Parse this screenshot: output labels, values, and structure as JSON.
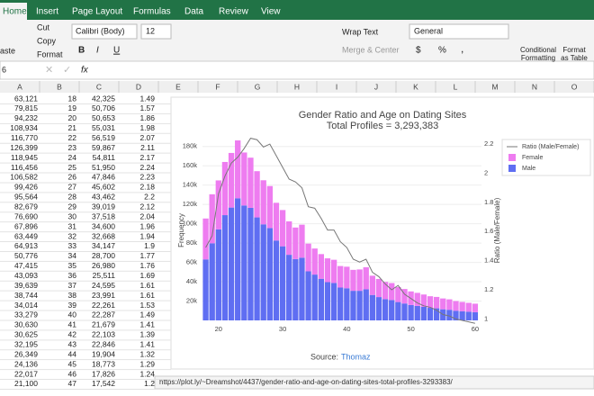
{
  "ribbon": {
    "tabs": [
      "Home",
      "Insert",
      "Page Layout",
      "Formulas",
      "Data",
      "Review",
      "View"
    ],
    "clipboard": {
      "paste": "aste",
      "cut": "Cut",
      "copy": "Copy",
      "format": "Format"
    },
    "font": {
      "name": "Calibri (Body)",
      "size": "12",
      "bold": "B",
      "italic": "I",
      "underline": "U"
    },
    "alignment": {
      "wrap": "Wrap Text",
      "merge": "Merge & Center"
    },
    "number": {
      "format": "General",
      "currency": "$",
      "percent": "%",
      "comma": ","
    },
    "styles": {
      "conditional": [
        "Conditional",
        "Formatting"
      ],
      "table": [
        "Format",
        "as Table"
      ]
    }
  },
  "formula_bar": {
    "name_box": "6",
    "fx": "fx"
  },
  "sheet": {
    "columns": [
      "A",
      "B",
      "C",
      "D",
      "E",
      "F",
      "G",
      "H",
      "I",
      "J",
      "K",
      "L",
      "M",
      "N",
      "O"
    ],
    "rows": [
      [
        "63,121",
        "18",
        "42,325",
        "1.49"
      ],
      [
        "79,815",
        "19",
        "50,706",
        "1.57"
      ],
      [
        "94,232",
        "20",
        "50,653",
        "1.86"
      ],
      [
        "108,934",
        "21",
        "55,031",
        "1.98"
      ],
      [
        "116,770",
        "22",
        "56,519",
        "2.07"
      ],
      [
        "126,399",
        "23",
        "59,867",
        "2.11"
      ],
      [
        "118,945",
        "24",
        "54,811",
        "2.17"
      ],
      [
        "116,456",
        "25",
        "51,950",
        "2.24"
      ],
      [
        "106,582",
        "26",
        "47,846",
        "2.23"
      ],
      [
        "99,426",
        "27",
        "45,602",
        "2.18"
      ],
      [
        "95,564",
        "28",
        "43,462",
        "2.2"
      ],
      [
        "82,679",
        "29",
        "39,019",
        "2.12"
      ],
      [
        "76,690",
        "30",
        "37,518",
        "2.04"
      ],
      [
        "67,896",
        "31",
        "34,600",
        "1.96"
      ],
      [
        "63,449",
        "32",
        "32,668",
        "1.94"
      ],
      [
        "64,913",
        "33",
        "34,147",
        "1.9"
      ],
      [
        "50,776",
        "34",
        "28,700",
        "1.77"
      ],
      [
        "47,415",
        "35",
        "26,980",
        "1.76"
      ],
      [
        "43,093",
        "36",
        "25,511",
        "1.69"
      ],
      [
        "39,639",
        "37",
        "24,595",
        "1.61"
      ],
      [
        "38,744",
        "38",
        "23,991",
        "1.61"
      ],
      [
        "34,014",
        "39",
        "22,261",
        "1.53"
      ],
      [
        "33,279",
        "40",
        "22,287",
        "1.49"
      ],
      [
        "30,630",
        "41",
        "21,679",
        "1.41"
      ],
      [
        "30,625",
        "42",
        "22,103",
        "1.39"
      ],
      [
        "32,195",
        "43",
        "22,846",
        "1.41"
      ],
      [
        "26,349",
        "44",
        "19,904",
        "1.32"
      ],
      [
        "24,136",
        "45",
        "18,773",
        "1.29"
      ],
      [
        "22,017",
        "46",
        "17,826",
        "1.24"
      ],
      [
        "21,100",
        "47",
        "17,542",
        "1.2"
      ]
    ]
  },
  "chart_data": {
    "type": "bar",
    "stacked": true,
    "title": "Gender Ratio and Age on Dating Sites",
    "subtitle": "Total Profiles = 3,293,383",
    "ylabel": "Frequency",
    "y2label": "Ratio (Male/Female)",
    "source_label": "Source:",
    "source": "Thomaz",
    "x": [
      18,
      19,
      20,
      21,
      22,
      23,
      24,
      25,
      26,
      27,
      28,
      29,
      30,
      31,
      32,
      33,
      34,
      35,
      36,
      37,
      38,
      39,
      40,
      41,
      42,
      43,
      44,
      45,
      46,
      47,
      48,
      49,
      50,
      51,
      52,
      53,
      54,
      55,
      56,
      57,
      58,
      59,
      60
    ],
    "series": [
      {
        "name": "Male",
        "color": "#5f6ef2",
        "values": [
          63121,
          79815,
          94232,
          108934,
          116770,
          126399,
          118945,
          116456,
          106582,
          99426,
          95564,
          82679,
          76690,
          67896,
          63449,
          64913,
          50776,
          47415,
          43093,
          39639,
          38744,
          34014,
          33279,
          30630,
          30625,
          32195,
          26349,
          24136,
          22017,
          21100,
          19000,
          17500,
          16000,
          15000,
          14000,
          13000,
          12500,
          11500,
          11000,
          10000,
          9500,
          9000,
          8500
        ]
      },
      {
        "name": "Female",
        "color": "#ee7cf0",
        "values": [
          42325,
          50706,
          50653,
          55031,
          56519,
          59867,
          54811,
          51950,
          47846,
          45602,
          43462,
          39019,
          37518,
          34600,
          32668,
          34147,
          28700,
          26980,
          25511,
          24595,
          23991,
          22261,
          22287,
          21679,
          22103,
          22846,
          19904,
          18773,
          17826,
          17542,
          15500,
          15000,
          14000,
          13500,
          12800,
          12000,
          11800,
          11200,
          10800,
          10000,
          9600,
          9200,
          8800
        ]
      },
      {
        "name": "Ratio (Male/Female)",
        "color": "#777777",
        "type": "line",
        "axis": "y2",
        "values": [
          1.49,
          1.57,
          1.86,
          1.98,
          2.07,
          2.11,
          2.17,
          2.24,
          2.23,
          2.18,
          2.2,
          2.12,
          2.04,
          1.96,
          1.94,
          1.9,
          1.77,
          1.76,
          1.69,
          1.61,
          1.61,
          1.53,
          1.49,
          1.41,
          1.39,
          1.41,
          1.32,
          1.29,
          1.24,
          1.2,
          1.23,
          1.17,
          1.14,
          1.11,
          1.09,
          1.08,
          1.06,
          1.03,
          1.02,
          1.0,
          0.99,
          0.98,
          0.97
        ]
      }
    ],
    "xlim": [
      17.5,
      61
    ],
    "xticks": [
      20,
      30,
      40,
      50,
      60
    ],
    "ylim": [
      0,
      190000
    ],
    "yticks": [
      {
        "value": 20000,
        "label": "20k"
      },
      {
        "value": 40000,
        "label": "40k"
      },
      {
        "value": 60000,
        "label": "60k"
      },
      {
        "value": 80000,
        "label": "80k"
      },
      {
        "value": 100000,
        "label": "100k"
      },
      {
        "value": 120000,
        "label": "120k"
      },
      {
        "value": 140000,
        "label": "140k"
      },
      {
        "value": 160000,
        "label": "160k"
      },
      {
        "value": 180000,
        "label": "180k"
      }
    ],
    "y2lim": [
      0.99,
      2.25
    ],
    "y2ticks": [
      1,
      1.2,
      1.4,
      1.6,
      1.8,
      2,
      2.2
    ],
    "grid": true
  },
  "status_url": "https://plot.ly/~Dreamshot/4437/gender-ratio-and-age-on-dating-sites-total-profiles-3293383/"
}
